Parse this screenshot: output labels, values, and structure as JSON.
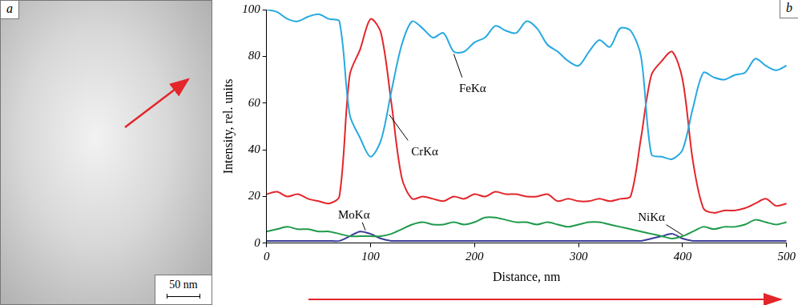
{
  "panel_a": {
    "label": "a",
    "scale_bar": "50 nm"
  },
  "chart_data": {
    "type": "line",
    "panel_label": "b",
    "x_label": "Distance, nm",
    "y_label": "Intensity, rel. units",
    "x": [
      0,
      10,
      20,
      30,
      40,
      50,
      60,
      70,
      80,
      90,
      100,
      110,
      120,
      130,
      140,
      150,
      160,
      170,
      180,
      190,
      200,
      210,
      220,
      230,
      240,
      250,
      260,
      270,
      280,
      290,
      300,
      310,
      320,
      330,
      340,
      350,
      360,
      370,
      380,
      390,
      400,
      410,
      420,
      430,
      440,
      450,
      460,
      470,
      480,
      490,
      500
    ],
    "series": [
      {
        "name": "FeKα",
        "color": "#27a9e1",
        "values": [
          100,
          99,
          96,
          95,
          97,
          98,
          96,
          95,
          55,
          45,
          37,
          44,
          65,
          85,
          95,
          92,
          88,
          90,
          82,
          82,
          86,
          88,
          93,
          91,
          90,
          95,
          92,
          85,
          82,
          78,
          76,
          82,
          87,
          84,
          92,
          91,
          80,
          38,
          37,
          36,
          40,
          58,
          73,
          71,
          70,
          72,
          73,
          79,
          76,
          74,
          76
        ]
      },
      {
        "name": "CrKα",
        "color": "#e3262b",
        "values": [
          21,
          22,
          20,
          21,
          19,
          18,
          17,
          20,
          72,
          83,
          96,
          90,
          60,
          28,
          19,
          20,
          19,
          18,
          20,
          19,
          21,
          20,
          22,
          21,
          21,
          20,
          20,
          21,
          18,
          19,
          18,
          18,
          19,
          18,
          19,
          20,
          45,
          72,
          78,
          82,
          70,
          35,
          15,
          13,
          14,
          14,
          15,
          17,
          19,
          16,
          17
        ]
      },
      {
        "name": "NiKα",
        "color": "#1e9a4b",
        "values": [
          5,
          6,
          7,
          6,
          6,
          5,
          5,
          4,
          3,
          3,
          3,
          3,
          4,
          6,
          8,
          9,
          8,
          8,
          9,
          8,
          9,
          11,
          11,
          10,
          9,
          9,
          8,
          9,
          8,
          7,
          8,
          9,
          9,
          8,
          7,
          6,
          5,
          4,
          3,
          2,
          3,
          5,
          7,
          6,
          7,
          7,
          8,
          10,
          9,
          8,
          9
        ]
      },
      {
        "name": "MoKα",
        "color": "#3b3d9a",
        "values": [
          1,
          1,
          1,
          1,
          1,
          1,
          1,
          1,
          3,
          5,
          4,
          2,
          1,
          1,
          1,
          1,
          1,
          1,
          1,
          1,
          1,
          1,
          1,
          1,
          1,
          1,
          1,
          1,
          1,
          1,
          1,
          1,
          1,
          1,
          1,
          1,
          1,
          2,
          3,
          4,
          2,
          1,
          1,
          1,
          1,
          1,
          1,
          1,
          1,
          1,
          1
        ]
      }
    ],
    "xlim": [
      0,
      500
    ],
    "xticks": [
      0,
      100,
      200,
      300,
      400,
      500
    ],
    "ylim": [
      0,
      100
    ],
    "yticks": [
      0,
      20,
      40,
      60,
      80,
      100
    ],
    "grid": false
  }
}
